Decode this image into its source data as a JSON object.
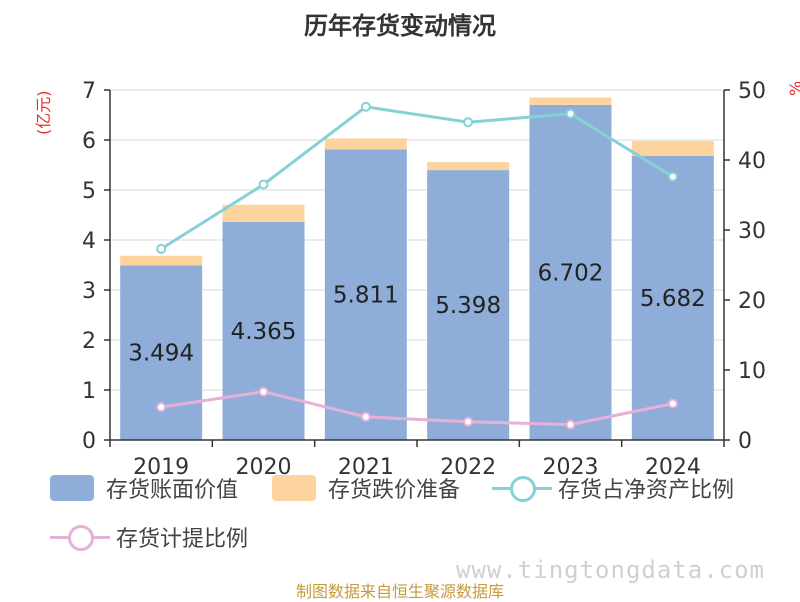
{
  "title": "历年存货变动情况",
  "unit_left": "(亿元)",
  "unit_right": "%",
  "source": "制图数据来自恒生聚源数据库",
  "watermark": "www.tingtongdata.com",
  "colors": {
    "bar_main": "#8eaed9",
    "bar_reserve": "#fdd49e",
    "line_net": "#86d1d6",
    "line_provision": "#e6b0d8"
  },
  "legend": {
    "book_value": "存货账面价值",
    "reserve": "存货跌价准备",
    "net_ratio": "存货占净资产比例",
    "provision_ratio": "存货计提比例"
  },
  "chart_data": {
    "type": "bar",
    "title": "历年存货变动情况",
    "categories": [
      "2019",
      "2020",
      "2021",
      "2022",
      "2023",
      "2024"
    ],
    "left_axis": {
      "label": "(亿元)",
      "ylim": [
        0,
        7
      ],
      "ticks": [
        "0",
        "1",
        "2",
        "3",
        "4",
        "5",
        "6",
        "7"
      ]
    },
    "right_axis": {
      "label": "%",
      "ylim": [
        0,
        50
      ],
      "ticks": [
        "0",
        "10",
        "20",
        "30",
        "40",
        "50"
      ]
    },
    "series": [
      {
        "name": "存货账面价值",
        "type": "bar",
        "stack": "a",
        "axis": "left",
        "values": [
          3.494,
          4.365,
          5.811,
          5.398,
          6.702,
          5.682
        ],
        "labels": [
          "3.494",
          "4.365",
          "5.811",
          "5.398",
          "6.702",
          "5.682"
        ]
      },
      {
        "name": "存货跌价准备",
        "type": "bar",
        "stack": "a",
        "axis": "left",
        "values": [
          0.19,
          0.34,
          0.22,
          0.16,
          0.15,
          0.3
        ]
      },
      {
        "name": "存货占净资产比例",
        "type": "line",
        "axis": "right",
        "values": [
          27.3,
          36.5,
          47.6,
          45.4,
          46.6,
          37.6
        ]
      },
      {
        "name": "存货计提比例",
        "type": "line",
        "axis": "right",
        "values": [
          4.7,
          6.9,
          3.3,
          2.6,
          2.2,
          5.2
        ]
      }
    ],
    "grid": true,
    "legend_position": "bottom"
  }
}
